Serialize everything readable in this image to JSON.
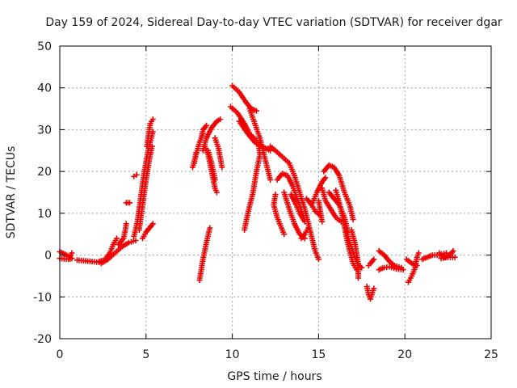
{
  "chart_data": {
    "type": "scatter",
    "title": "Day 159 of 2024, Sidereal Day-to-day VTEC variation (SDTVAR) for receiver dgar",
    "xlabel": "GPS time / hours",
    "ylabel": "SDTVAR / TECUs",
    "xlim": [
      0,
      25
    ],
    "ylim": [
      -20,
      50
    ],
    "xticks": [
      0,
      5,
      10,
      15,
      20,
      25
    ],
    "yticks": [
      -20,
      -10,
      0,
      10,
      20,
      30,
      40,
      50
    ],
    "xtick_labels": [
      "0",
      "5",
      "10",
      "15",
      "20",
      "25"
    ],
    "ytick_labels": [
      "-20",
      "-10",
      "0",
      "10",
      "20",
      "30",
      "40",
      "50"
    ],
    "grid": true,
    "marker": "plus",
    "color": "#ee0000",
    "tracks": [
      [
        [
          0.0,
          0.8
        ],
        [
          0.3,
          0.2
        ],
        [
          0.6,
          -0.5
        ],
        [
          0.7,
          0.5
        ]
      ],
      [
        [
          0.0,
          -0.8
        ],
        [
          0.5,
          -1.0
        ],
        [
          0.7,
          -0.8
        ]
      ],
      [
        [
          1.0,
          -1.2
        ],
        [
          1.5,
          -1.4
        ],
        [
          2.0,
          -1.6
        ],
        [
          2.4,
          -1.8
        ]
      ],
      [
        [
          2.3,
          -1.5
        ],
        [
          2.6,
          -1.2
        ],
        [
          2.9,
          0.5
        ],
        [
          3.1,
          2.5
        ],
        [
          3.3,
          4.0
        ]
      ],
      [
        [
          2.4,
          -2.0
        ],
        [
          2.8,
          -1.0
        ],
        [
          3.2,
          0.5
        ],
        [
          3.6,
          2.0
        ],
        [
          4.0,
          3.0
        ],
        [
          4.4,
          3.5
        ]
      ],
      [
        [
          3.4,
          2.5
        ],
        [
          3.7,
          4.0
        ],
        [
          3.8,
          6.0
        ],
        [
          3.85,
          7.5
        ]
      ],
      [
        [
          4.8,
          4.0
        ],
        [
          5.0,
          5.5
        ],
        [
          5.2,
          6.5
        ],
        [
          5.4,
          7.5
        ]
      ],
      [
        [
          4.3,
          4.5
        ],
        [
          4.5,
          8.0
        ],
        [
          4.7,
          14.0
        ],
        [
          4.9,
          20.0
        ],
        [
          5.1,
          24.5
        ],
        [
          5.3,
          28.0
        ],
        [
          5.4,
          29.5
        ]
      ],
      [
        [
          4.6,
          6.0
        ],
        [
          4.8,
          12.0
        ],
        [
          5.0,
          18.0
        ],
        [
          5.2,
          23.0
        ],
        [
          5.35,
          26.0
        ]
      ],
      [
        [
          5.05,
          26.0
        ],
        [
          5.15,
          29.0
        ],
        [
          5.25,
          31.5
        ],
        [
          5.4,
          32.5
        ]
      ],
      [
        [
          3.85,
          12.5
        ],
        [
          4.05,
          12.5
        ]
      ],
      [
        [
          4.3,
          18.8
        ],
        [
          4.45,
          19.2
        ]
      ],
      [
        [
          8.1,
          -6.0
        ],
        [
          8.3,
          -1.0
        ],
        [
          8.5,
          3.0
        ],
        [
          8.7,
          6.5
        ]
      ],
      [
        [
          7.7,
          21.0
        ],
        [
          7.9,
          24.0
        ],
        [
          8.1,
          27.0
        ],
        [
          8.3,
          29.0
        ]
      ],
      [
        [
          7.8,
          22.0
        ],
        [
          7.9,
          24.5
        ]
      ],
      [
        [
          8.3,
          25.0
        ],
        [
          8.5,
          28.0
        ],
        [
          8.8,
          30.5
        ],
        [
          9.1,
          32.0
        ],
        [
          9.3,
          32.5
        ]
      ],
      [
        [
          8.2,
          28.0
        ],
        [
          8.3,
          30.0
        ],
        [
          8.5,
          31.0
        ]
      ],
      [
        [
          8.4,
          26.0
        ],
        [
          8.6,
          24.0
        ],
        [
          8.8,
          20.0
        ],
        [
          9.0,
          16.0
        ],
        [
          9.1,
          15.0
        ]
      ],
      [
        [
          8.6,
          25.0
        ],
        [
          8.8,
          22.0
        ],
        [
          9.0,
          18.0
        ]
      ],
      [
        [
          9.4,
          21.0
        ],
        [
          9.2,
          25.5
        ],
        [
          9.0,
          28.0
        ]
      ],
      [
        [
          10.0,
          40.5
        ],
        [
          10.4,
          39.0
        ],
        [
          10.8,
          36.5
        ],
        [
          11.1,
          35.0
        ],
        [
          11.4,
          34.5
        ]
      ],
      [
        [
          9.9,
          35.5
        ],
        [
          10.3,
          34.0
        ],
        [
          10.7,
          31.5
        ],
        [
          11.0,
          29.0
        ],
        [
          11.4,
          27.5
        ]
      ],
      [
        [
          10.4,
          32.0
        ],
        [
          10.9,
          29.0
        ],
        [
          11.3,
          27.0
        ],
        [
          11.7,
          26.0
        ],
        [
          12.2,
          25.0
        ]
      ],
      [
        [
          11.0,
          35.0
        ],
        [
          11.3,
          31.5
        ],
        [
          11.6,
          28.0
        ],
        [
          11.9,
          23.0
        ],
        [
          12.2,
          18.0
        ]
      ],
      [
        [
          11.5,
          27.0
        ],
        [
          11.6,
          24.0
        ],
        [
          11.4,
          20.0
        ],
        [
          11.2,
          15.0
        ],
        [
          10.9,
          10.0
        ],
        [
          10.7,
          6.0
        ]
      ],
      [
        [
          12.2,
          26.0
        ],
        [
          12.5,
          25.0
        ],
        [
          12.9,
          23.5
        ],
        [
          13.3,
          22.0
        ],
        [
          13.6,
          19.0
        ],
        [
          13.9,
          15.0
        ],
        [
          14.2,
          11.0
        ],
        [
          14.5,
          6.0
        ],
        [
          14.8,
          1.0
        ],
        [
          15.0,
          -1.0
        ]
      ],
      [
        [
          12.6,
          18.0
        ],
        [
          12.9,
          19.5
        ],
        [
          13.2,
          19.0
        ],
        [
          13.5,
          16.5
        ],
        [
          13.8,
          13.0
        ],
        [
          14.1,
          9.5
        ]
      ],
      [
        [
          12.5,
          14.5
        ],
        [
          12.4,
          12.0
        ],
        [
          12.6,
          9.0
        ],
        [
          12.8,
          7.0
        ],
        [
          13.0,
          5.0
        ]
      ],
      [
        [
          13.0,
          15.0
        ],
        [
          13.3,
          11.0
        ],
        [
          13.6,
          7.5
        ],
        [
          13.9,
          5.0
        ],
        [
          14.2,
          4.0
        ]
      ],
      [
        [
          13.4,
          14.5
        ],
        [
          13.7,
          12.0
        ],
        [
          13.9,
          10.0
        ],
        [
          14.2,
          8.0
        ]
      ],
      [
        [
          14.3,
          13.5
        ],
        [
          14.6,
          12.0
        ],
        [
          14.8,
          10.5
        ],
        [
          15.1,
          9.5
        ]
      ],
      [
        [
          14.6,
          12.0
        ],
        [
          14.9,
          15.0
        ],
        [
          15.2,
          17.5
        ],
        [
          15.4,
          18.5
        ]
      ],
      [
        [
          15.2,
          16.0
        ],
        [
          15.4,
          13.0
        ],
        [
          15.7,
          11.0
        ],
        [
          16.0,
          9.0
        ],
        [
          16.3,
          8.0
        ]
      ],
      [
        [
          15.3,
          20.0
        ],
        [
          15.6,
          21.5
        ],
        [
          15.9,
          21.0
        ],
        [
          16.2,
          19.0
        ],
        [
          16.5,
          15.0
        ],
        [
          16.8,
          12.0
        ],
        [
          17.0,
          8.5
        ]
      ],
      [
        [
          15.6,
          15.0
        ],
        [
          15.9,
          13.5
        ],
        [
          16.2,
          12.0
        ],
        [
          16.5,
          9.0
        ],
        [
          16.7,
          5.5
        ]
      ],
      [
        [
          16.0,
          15.5
        ],
        [
          16.2,
          12.5
        ],
        [
          16.4,
          9.0
        ],
        [
          16.6,
          4.5
        ],
        [
          16.8,
          1.0
        ],
        [
          17.0,
          -2.0
        ],
        [
          17.2,
          -3.5
        ]
      ],
      [
        [
          16.4,
          8.5
        ],
        [
          16.6,
          6.0
        ],
        [
          16.8,
          3.0
        ],
        [
          17.1,
          -0.5
        ],
        [
          17.3,
          -2.5
        ],
        [
          17.5,
          -3.0
        ]
      ],
      [
        [
          16.9,
          6.0
        ],
        [
          17.1,
          3.0
        ],
        [
          17.2,
          0.5
        ],
        [
          17.3,
          -2.0
        ],
        [
          17.3,
          -5.5
        ]
      ],
      [
        [
          15.0,
          13.0
        ],
        [
          15.1,
          10.5
        ],
        [
          15.2,
          8.0
        ]
      ],
      [
        [
          14.0,
          4.0
        ],
        [
          14.2,
          5.0
        ],
        [
          14.4,
          6.5
        ]
      ],
      [
        [
          17.8,
          -7.5
        ],
        [
          17.9,
          -9.5
        ],
        [
          18.0,
          -10.5
        ],
        [
          18.2,
          -8.0
        ]
      ],
      [
        [
          17.9,
          -2.5
        ],
        [
          18.0,
          -2.0
        ],
        [
          18.2,
          -1.0
        ]
      ],
      [
        [
          18.5,
          1.0
        ],
        [
          18.8,
          0.0
        ],
        [
          19.1,
          -1.5
        ],
        [
          19.4,
          -2.5
        ],
        [
          19.8,
          -3.0
        ]
      ],
      [
        [
          18.5,
          -3.5
        ],
        [
          18.8,
          -3.0
        ],
        [
          19.1,
          -2.8
        ],
        [
          19.5,
          -3.3
        ],
        [
          19.9,
          -3.5
        ]
      ],
      [
        [
          20.2,
          -6.5
        ],
        [
          20.4,
          -5.0
        ],
        [
          20.6,
          -3.0
        ],
        [
          20.7,
          -0.5
        ],
        [
          20.8,
          0.5
        ]
      ],
      [
        [
          20.1,
          -1.0
        ],
        [
          20.4,
          -2.0
        ],
        [
          20.7,
          -2.5
        ]
      ],
      [
        [
          21.0,
          -1.0
        ],
        [
          21.3,
          -0.5
        ],
        [
          21.6,
          0.0
        ],
        [
          22.0,
          0.0
        ],
        [
          22.4,
          0.5
        ]
      ],
      [
        [
          22.0,
          0.5
        ],
        [
          22.3,
          -0.5
        ],
        [
          22.6,
          0.0
        ],
        [
          22.8,
          1.0
        ]
      ],
      [
        [
          22.1,
          -0.8
        ],
        [
          22.5,
          -0.5
        ],
        [
          22.9,
          -0.5
        ]
      ]
    ]
  }
}
